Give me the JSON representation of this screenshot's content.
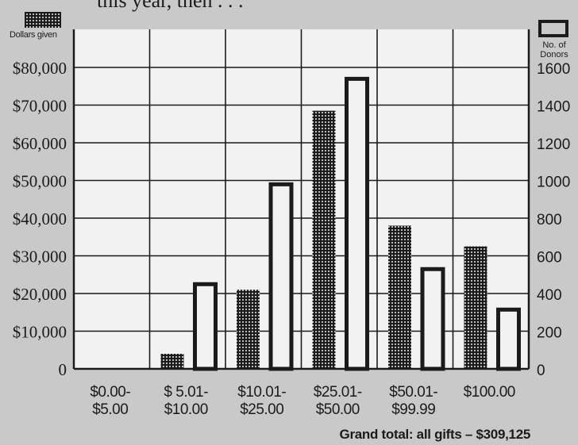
{
  "header": {
    "top_text": "this year, then . . ."
  },
  "legend": {
    "left_label": "Dollars given",
    "right_label_line1": "No. of",
    "right_label_line2": "Donors"
  },
  "chart_data": {
    "type": "bar",
    "categories": [
      [
        "$0.00-",
        "$5.00"
      ],
      [
        "$ 5.01-",
        "$10.00"
      ],
      [
        "$10.01-",
        "$25.00"
      ],
      [
        "$25.01-",
        "$50.00"
      ],
      [
        "$50.01-",
        "$99.99"
      ],
      [
        "$100.00",
        ""
      ]
    ],
    "series": [
      {
        "name": "Dollars given",
        "axis": "left",
        "values": [
          0,
          4000,
          21000,
          68500,
          38000,
          32500
        ]
      },
      {
        "name": "No. of Donors",
        "axis": "right",
        "values": [
          0,
          460,
          990,
          1550,
          540,
          325
        ]
      }
    ],
    "left_axis": {
      "label": "Dollars given",
      "ticks": [
        "0",
        "$10,000",
        "$20,000",
        "$30,000",
        "$40,000",
        "$50,000",
        "$60,000",
        "$70,000",
        "$80,000"
      ],
      "range": [
        0,
        90000
      ]
    },
    "right_axis": {
      "label": "No. of Donors",
      "ticks": [
        "0",
        "200",
        "400",
        "600",
        "800",
        "1000",
        "1200",
        "1400",
        "1600"
      ],
      "range": [
        0,
        1800
      ]
    },
    "grid": true,
    "footnote": "Grand total: all gifts – $309,125"
  },
  "colors": {
    "background": "#c9c9c9",
    "plot_background": "#f2f2f2",
    "ink": "#1b1b1b"
  }
}
